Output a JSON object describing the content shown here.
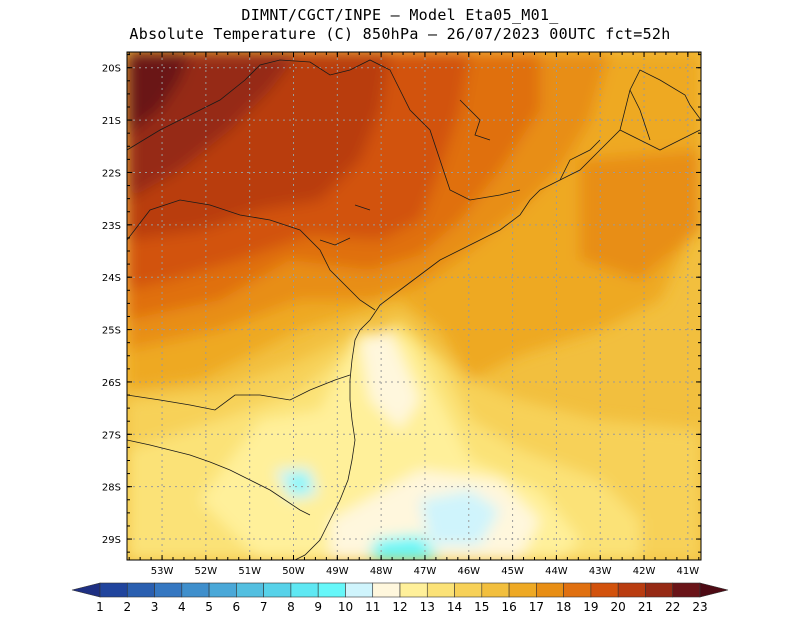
{
  "title": {
    "line1": "DIMNT/CGCT/INPE –  Model Eta05_M01_",
    "line2": "Absolute Temperature (C) 850hPa –  26/07/2023 00UTC fct=52h"
  },
  "map": {
    "lat_labels": [
      "20S",
      "21S",
      "22S",
      "23S",
      "24S",
      "25S",
      "26S",
      "27S",
      "28S",
      "29S"
    ],
    "lon_labels": [
      "53W",
      "52W",
      "51W",
      "50W",
      "49W",
      "48W",
      "47W",
      "46W",
      "45W",
      "44W",
      "43W",
      "42W",
      "41W"
    ],
    "lat_range": [
      -29.4,
      -19.7
    ],
    "lon_range": [
      -53.8,
      -40.7
    ],
    "grid": "dotted"
  },
  "colorbar": {
    "labels": [
      "1",
      "2",
      "3",
      "4",
      "5",
      "6",
      "7",
      "8",
      "9",
      "10",
      "11",
      "12",
      "13",
      "14",
      "15",
      "16",
      "17",
      "18",
      "19",
      "20",
      "21",
      "22",
      "23"
    ],
    "colors": [
      "#1e2f82",
      "#20449d",
      "#2a5fb0",
      "#3577c1",
      "#3f8fcc",
      "#4aa8d8",
      "#53bfe0",
      "#57d2e9",
      "#5fe8f3",
      "#66f7f9",
      "#cff4fc",
      "#fff7dd",
      "#fff09a",
      "#fbe277",
      "#f7d158",
      "#f2bf3e",
      "#eea924",
      "#e88e14",
      "#e07010",
      "#d2520c",
      "#b93c10",
      "#962a14",
      "#6a1418",
      "#4e0a14"
    ]
  },
  "fields": [
    {
      "value": 16,
      "color": "#f2bf3e"
    },
    {
      "value": 17,
      "color": "#eea924"
    },
    {
      "value": 18,
      "color": "#e88e14"
    },
    {
      "value": 19,
      "color": "#e07010"
    },
    {
      "value": 20,
      "color": "#d2520c"
    },
    {
      "value": 21,
      "color": "#b93c10"
    },
    {
      "value": 22,
      "color": "#962a14"
    },
    {
      "value": 23,
      "color": "#6a1418"
    },
    {
      "value": 15,
      "color": "#f7d158"
    },
    {
      "value": 14,
      "color": "#fbe277"
    },
    {
      "value": 13,
      "color": "#fff09a"
    },
    {
      "value": 12,
      "color": "#fff7dd"
    },
    {
      "value": 11,
      "color": "#cff4fc"
    },
    {
      "value": 10,
      "color": "#66f7f9"
    },
    {
      "value": 9,
      "color": "#5fe8f3"
    }
  ],
  "icons": {
    "colorbar_left_end": "triangle-left",
    "colorbar_right_end": "triangle-right"
  }
}
